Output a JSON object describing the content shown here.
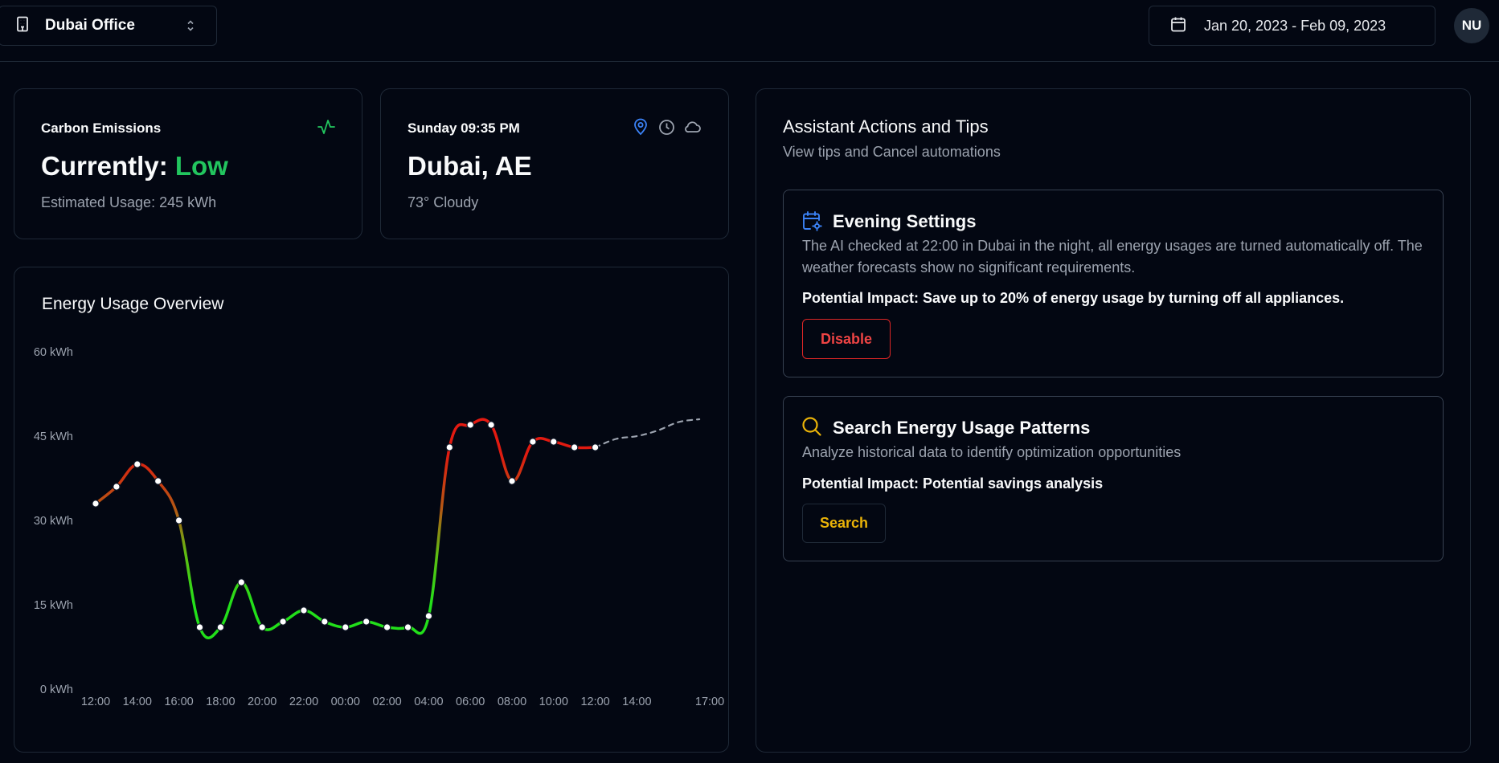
{
  "header": {
    "office": "Dubai Office",
    "date_range": "Jan 20, 2023 - Feb 09, 2023",
    "avatar_initials": "NU"
  },
  "carbon": {
    "title": "Carbon Emissions",
    "current_label": "Currently:",
    "current_value": "Low",
    "usage": "Estimated Usage: 245 kWh",
    "accent": "#22c55e"
  },
  "weather": {
    "datetime": "Sunday 09:35 PM",
    "location": "Dubai, AE",
    "conditions": "73° Cloudy",
    "icons": [
      "map-pin-icon",
      "clock-icon",
      "cloud-icon"
    ]
  },
  "chart_data": {
    "type": "line",
    "title": "Energy Usage Overview",
    "y_ticks": [
      "60 kWh",
      "45 kWh",
      "30 kWh",
      "15 kWh",
      "0 kWh"
    ],
    "ylim": [
      0,
      60
    ],
    "x_ticks": [
      "12:00",
      "14:00",
      "16:00",
      "18:00",
      "20:00",
      "22:00",
      "00:00",
      "02:00",
      "04:00",
      "06:00",
      "08:00",
      "10:00",
      "12:00",
      "14:00",
      "17:00"
    ],
    "series": [
      {
        "points": [
          [
            0,
            33
          ],
          [
            1,
            36
          ],
          [
            2,
            40
          ],
          [
            3,
            37
          ],
          [
            4,
            30
          ],
          [
            5,
            11
          ],
          [
            6,
            11
          ],
          [
            7,
            19
          ],
          [
            8,
            11
          ],
          [
            9,
            12
          ],
          [
            10,
            14
          ],
          [
            11,
            12
          ],
          [
            12,
            11
          ],
          [
            13,
            12
          ],
          [
            14,
            11
          ],
          [
            15,
            11
          ],
          [
            16,
            13
          ],
          [
            17,
            43
          ],
          [
            18,
            47
          ],
          [
            19,
            47
          ],
          [
            20,
            37
          ],
          [
            21,
            44
          ],
          [
            22,
            44
          ],
          [
            23,
            43
          ],
          [
            24,
            43
          ]
        ]
      },
      {
        "forecast": true,
        "points": [
          [
            24,
            43
          ],
          [
            25,
            44.5
          ],
          [
            26,
            45
          ],
          [
            27,
            46
          ],
          [
            28,
            47.5
          ],
          [
            29,
            48
          ]
        ]
      }
    ],
    "colors": {
      "low": "#22e01a",
      "mid": "#b35a14",
      "high": "#ef1a14",
      "forecast": "#9ca3af"
    }
  },
  "assistant": {
    "title": "Assistant Actions and Tips",
    "subtitle": "View tips and Cancel automations",
    "actions": [
      {
        "title": "Evening Settings",
        "icon": "calendar-settings-icon",
        "description": "The AI checked at 22:00 in Dubai in the night, all energy usages are turned automatically off. The weather forecasts show no significant requirements.",
        "impact": "Potential Impact: Save up to 20% of energy usage by turning off all appliances.",
        "button": "Disable"
      },
      {
        "title": "Search Energy Usage Patterns",
        "icon": "search-icon",
        "description": "Analyze historical data to identify optimization opportunities",
        "impact": "Potential Impact: Potential savings analysis",
        "button": "Search"
      }
    ]
  }
}
